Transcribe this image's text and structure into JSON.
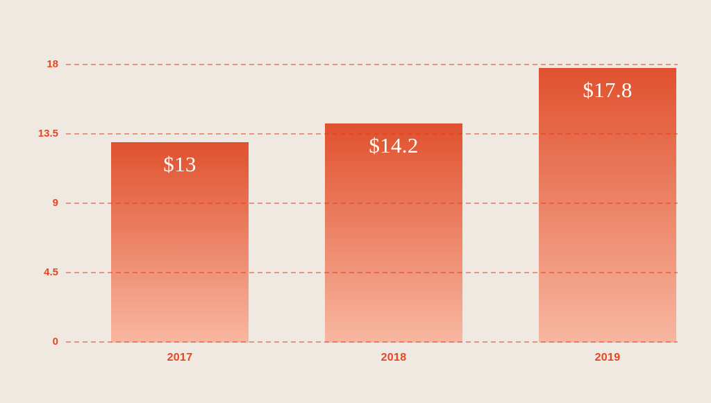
{
  "page": {
    "background_color": "#efe9e1",
    "accent_color": "#e64621"
  },
  "chart_data": {
    "type": "bar",
    "title": "",
    "xlabel": "",
    "ylabel": "",
    "categories": [
      "2017",
      "2018",
      "2019"
    ],
    "values": [
      13,
      14.2,
      17.8
    ],
    "value_labels": [
      "$13",
      "$14.2",
      "$17.8"
    ],
    "ylim": [
      0,
      18
    ],
    "yticks": [
      0,
      4.5,
      9,
      13.5,
      18
    ],
    "ytick_labels": [
      "0",
      "4.5",
      "9",
      "13.5",
      "18"
    ],
    "grid": "horizontal dashed lines drawn over bars",
    "legend": "none",
    "colors": {
      "bar_gradient_top": "#e0512e",
      "bar_gradient_bottom": "#f8b7a1",
      "gridline": "rgba(228,58,22,0.5)",
      "axis_label": "#e64621",
      "bar_value_label": "#ffffff",
      "background": "#efe9e1"
    }
  }
}
